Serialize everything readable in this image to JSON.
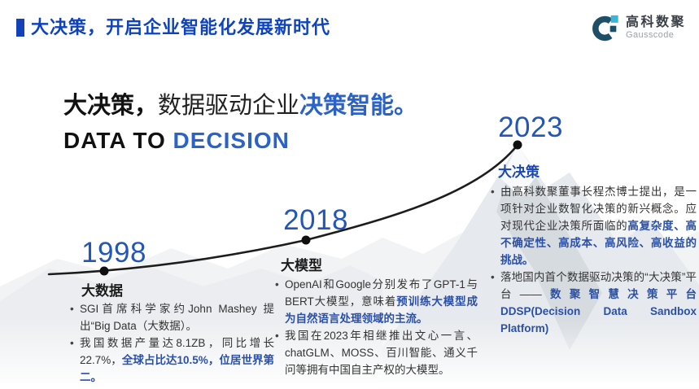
{
  "header": {
    "title": "大决策，开启企业智能化发展新时代"
  },
  "logo": {
    "name_cn": "高科数聚",
    "name_en": "Gausscode",
    "mark_dark_color": "#1f4f66",
    "mark_cyan_color": "#3ab7d8"
  },
  "hero": {
    "title_lead": "大决策，",
    "title_mid": "数据驱动企业",
    "title_accent": "决策智能。",
    "subtitle_lead": "DATA TO ",
    "subtitle_accent": "DECISION"
  },
  "timeline": {
    "curve_color": "#1d1d1d",
    "milestones": [
      {
        "year": "1998",
        "title": "大数据",
        "bullets": [
          [
            {
              "t": "SGI首席科学家约John Mashey 提出“Big Data（大数据）。",
              "hl": false
            }
          ],
          [
            {
              "t": "我国数据产量达8.1ZB，同比增长22.7%，",
              "hl": false
            },
            {
              "t": "全球占比达10.5%，位居世界第二。",
              "hl": true
            }
          ]
        ]
      },
      {
        "year": "2018",
        "title": "大模型",
        "bullets": [
          [
            {
              "t": "OpenAI和Google分别发布了GPT-1与BERT大模型，意味着",
              "hl": false
            },
            {
              "t": "预训练大模型成为自然语言处理领域的主流。",
              "hl": true
            }
          ],
          [
            {
              "t": "我国在2023年相继推出文心一言、chatGLM、MOSS、百川智能、通义千问等拥有中国自主产权的大模型。",
              "hl": false
            }
          ]
        ]
      },
      {
        "year": "2023",
        "title": "大决策",
        "bullets": [
          [
            {
              "t": "由高科数聚董事长程杰博士提出，是一项针对企业数智化决策的新兴概念。应对现代企业决策所面临的",
              "hl": false
            },
            {
              "t": "高复杂度、高不确定性、高成本、高风险、高收益的挑战。",
              "hl": true
            }
          ],
          [
            {
              "t": "落地国内首个数据驱动决策的“大决策”平台——",
              "hl": false
            },
            {
              "t": "数聚智慧决策平台DDSP(Decision Data Sandbox Platform)",
              "hl": true
            }
          ]
        ]
      }
    ]
  },
  "colors": {
    "header_blue": "#0f43bd",
    "accent_blue": "#2a62c8",
    "year_blue": "#2456b5",
    "highlight_blue": "#2b50a5"
  }
}
